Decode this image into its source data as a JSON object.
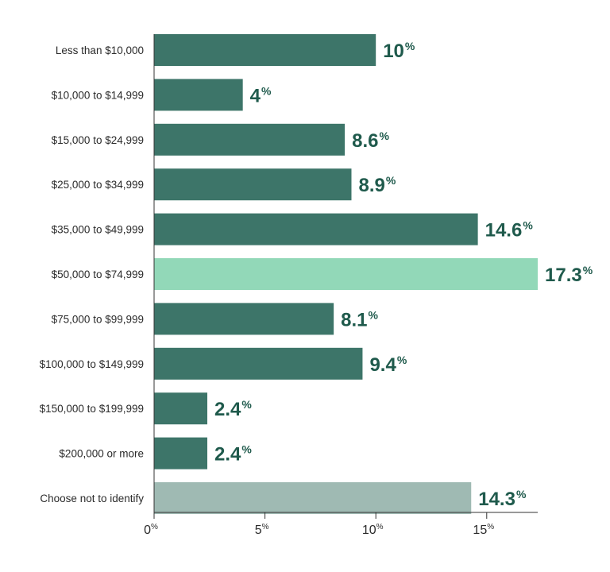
{
  "chart_data": {
    "type": "bar",
    "orientation": "horizontal",
    "categories": [
      "Less than $10,000",
      "$10,000 to $14,999",
      "$15,000 to $24,999",
      "$25,000 to $34,999",
      "$35,000 to $49,999",
      "$50,000 to $74,999",
      "$75,000 to $99,999",
      "$100,000 to $149,999",
      "$150,000 to $199,999",
      "$200,000 or more",
      "Choose not to identify"
    ],
    "values": [
      10,
      4,
      8.6,
      8.9,
      14.6,
      17.3,
      8.1,
      9.4,
      2.4,
      2.4,
      14.3
    ],
    "value_labels": [
      "10",
      "4",
      "8.6",
      "8.9",
      "14.6",
      "17.3",
      "8.1",
      "9.4",
      "2.4",
      "2.4",
      "14.3"
    ],
    "value_suffix": "%",
    "xlim": [
      0,
      17.3
    ],
    "xticks": [
      0,
      5,
      10,
      15
    ],
    "xtick_labels": [
      "0",
      "5",
      "10",
      "15"
    ],
    "xtick_suffix": "%",
    "title": "",
    "xlabel": "",
    "ylabel": "",
    "grid": false,
    "legend": "none",
    "colors": {
      "default": "#3d7569",
      "highlight": "#92d8b8",
      "muted": "#9fbab3",
      "value_text": "#1f5a4c",
      "axis": "#333333"
    },
    "bar_styles": [
      "default",
      "default",
      "default",
      "default",
      "default",
      "highlight",
      "default",
      "default",
      "default",
      "default",
      "muted"
    ]
  }
}
